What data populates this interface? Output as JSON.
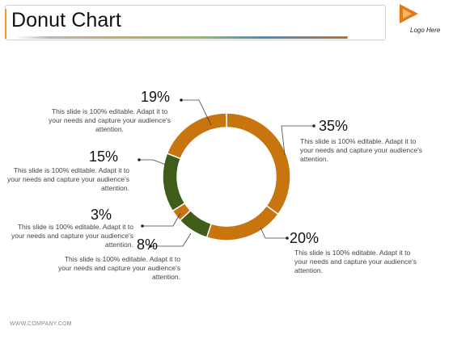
{
  "header": {
    "title": "Donut Chart"
  },
  "logo": {
    "text": "Logo Here",
    "color": "#e47a16"
  },
  "footer": {
    "text": "WWW.COMPANY.COM"
  },
  "chart_data": {
    "type": "pie",
    "style": "donut",
    "title": "",
    "slices": [
      {
        "label": "35%",
        "value": 35,
        "color": "#c8740f"
      },
      {
        "label": "20%",
        "value": 20,
        "color": "#c8740f"
      },
      {
        "label": "8%",
        "value": 8,
        "color": "#405c1a"
      },
      {
        "label": "3%",
        "value": 3,
        "color": "#c8740f"
      },
      {
        "label": "15%",
        "value": 15,
        "color": "#405c1a"
      },
      {
        "label": "19%",
        "value": 19,
        "color": "#c8740f"
      }
    ]
  },
  "callouts": [
    {
      "pct": "35%",
      "text": "This slide is 100% editable. Adapt it to your needs and capture your audience's attention."
    },
    {
      "pct": "20%",
      "text": "This slide is 100% editable. Adapt it to your needs and capture your audience's attention."
    },
    {
      "pct": "8%",
      "text": "This slide is 100% editable. Adapt it to your needs and capture your audience's attention."
    },
    {
      "pct": "3%",
      "text": "This slide is 100% editable. Adapt it to your needs and capture your audience's attention."
    },
    {
      "pct": "15%",
      "text": "This slide is 100% editable. Adapt it to your needs and capture your audience's attention."
    },
    {
      "pct": "19%",
      "text": "This slide is 100% editable. Adapt it to your needs and capture your audience's attention."
    }
  ]
}
